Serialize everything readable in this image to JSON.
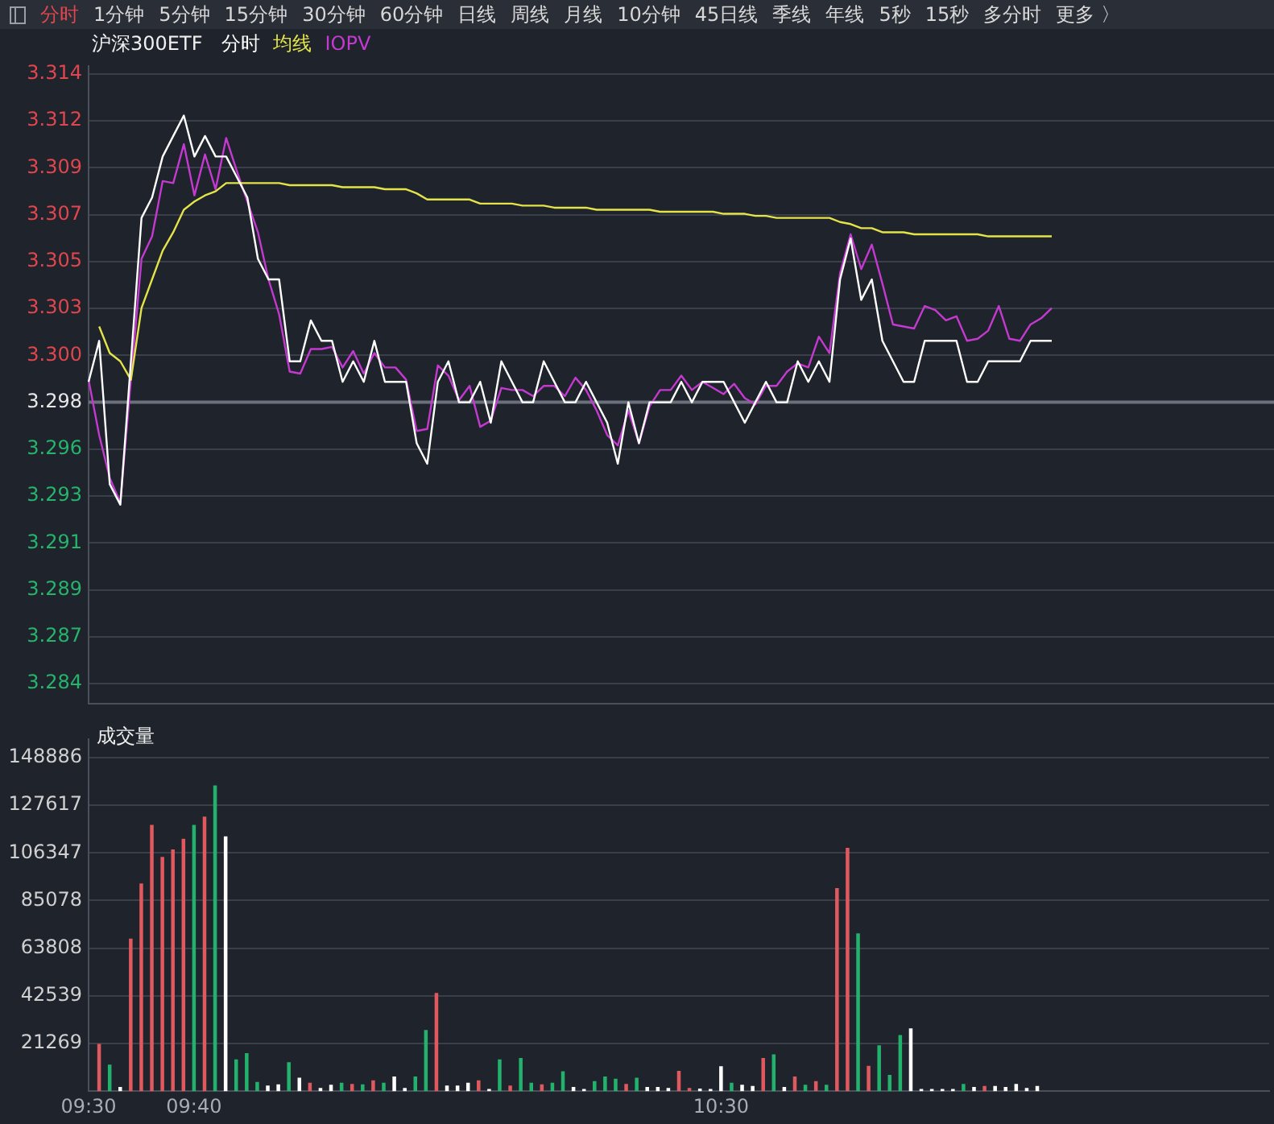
{
  "chart_data": [
    {
      "type": "line",
      "title": "沪深300ETF",
      "legend": "top left",
      "grid": "y",
      "tick_labels": "y",
      "annotations": [
        "分时",
        "1分钟",
        "5分钟",
        "15分钟",
        "30分钟",
        "60分钟",
        "日线",
        "周线",
        "月线",
        "10分钟",
        "45日线",
        "季线",
        "年线",
        "5秒",
        "15秒",
        "多分时",
        "更多 〉"
      ],
      "categories": [
        null,
        null,
        null,
        null,
        null,
        null,
        null,
        null,
        null,
        null,
        null,
        null,
        null,
        null,
        null,
        null,
        null,
        null,
        null,
        null,
        null,
        null,
        null,
        null,
        null,
        null,
        null,
        null,
        null,
        null,
        null,
        null,
        null,
        null,
        null,
        null,
        null,
        null,
        null,
        null,
        null,
        null,
        null,
        null,
        null,
        null,
        null,
        null,
        null,
        null,
        null,
        null,
        null,
        null,
        null,
        null,
        null,
        null,
        null,
        null,
        null,
        null,
        null,
        null,
        null,
        null,
        null,
        null,
        null,
        null,
        null,
        null,
        null,
        null,
        null,
        null,
        null,
        null,
        null,
        null,
        null,
        null,
        null,
        null,
        null,
        null,
        null,
        null,
        null,
        null,
        null,
        null,
        null,
        null,
        null,
        null,
        null,
        null,
        null,
        null,
        null,
        null,
        null,
        null,
        null,
        null,
        null,
        null,
        null,
        null,
        null,
        null,
        null
      ],
      "ylim": [
        3.2833,
        3.3144
      ],
      "yticks": [
        {
          "value": 3.28426,
          "label": "3.284"
        },
        {
          "value": 3.28655,
          "label": "3.287"
        },
        {
          "value": 3.28884,
          "label": "3.289"
        },
        {
          "value": 3.29113,
          "label": "3.291"
        },
        {
          "value": 3.29342,
          "label": "3.293"
        },
        {
          "value": 3.29571,
          "label": "3.296"
        },
        {
          "value": 3.298,
          "label": "3.298"
        },
        {
          "value": 3.30029,
          "label": "3.300"
        },
        {
          "value": 3.30258,
          "label": "3.303"
        },
        {
          "value": 3.30487,
          "label": "3.305"
        },
        {
          "value": 3.30716,
          "label": "3.307"
        },
        {
          "value": 3.30945,
          "label": "3.309"
        },
        {
          "value": 3.31174,
          "label": "3.312"
        },
        {
          "value": 3.31403,
          "label": "3.314"
        }
      ],
      "ref_lines": [
        {
          "axis": "y",
          "value": 3.298,
          "label": null,
          "color": "#6b717c"
        }
      ],
      "series": [
        {
          "name": "分时",
          "color": "#ffffff",
          "values": [
            3.299,
            3.301,
            3.294,
            3.293,
            3.3,
            3.307,
            3.308,
            3.31,
            3.311,
            3.312,
            3.31,
            3.311,
            3.31,
            3.31,
            3.309,
            3.308,
            3.305,
            3.304,
            3.304,
            3.3,
            3.3,
            3.302,
            3.301,
            3.301,
            3.299,
            3.3,
            3.299,
            3.301,
            3.299,
            3.299,
            3.299,
            3.296,
            3.295,
            3.299,
            3.3,
            3.298,
            3.298,
            3.299,
            3.297,
            3.3,
            3.299,
            3.298,
            3.298,
            3.3,
            3.299,
            3.298,
            3.298,
            3.299,
            3.298,
            3.297,
            3.295,
            3.298,
            3.296,
            3.298,
            3.298,
            3.298,
            3.299,
            3.298,
            3.299,
            3.299,
            3.299,
            3.298,
            3.297,
            3.298,
            3.299,
            3.298,
            3.298,
            3.3,
            3.299,
            3.3,
            3.299,
            3.304,
            3.306,
            3.303,
            3.304,
            3.301,
            3.3,
            3.299,
            3.299,
            3.301,
            3.301,
            3.301,
            3.301,
            3.299,
            3.299,
            3.3,
            3.3,
            3.3,
            3.3,
            3.301,
            3.301,
            3.301,
            null,
            null,
            null,
            null,
            null,
            null,
            null,
            null,
            null,
            null,
            null,
            null,
            null,
            null,
            null,
            null,
            null,
            null,
            null,
            null,
            null
          ]
        },
        {
          "name": "均线",
          "color": "#e4e44a",
          "values": [
            null,
            3.3017,
            3.3004,
            3.3,
            3.2991,
            3.3026,
            3.304,
            3.3054,
            3.3063,
            3.3074,
            3.3078,
            3.3081,
            3.3083,
            3.3087,
            3.3087,
            3.3087,
            3.3087,
            3.3087,
            3.3087,
            3.3086,
            3.3086,
            3.3086,
            3.3086,
            3.3086,
            3.3085,
            3.3085,
            3.3085,
            3.3085,
            3.3084,
            3.3084,
            3.3084,
            3.3082,
            3.3079,
            3.3079,
            3.3079,
            3.3079,
            3.3079,
            3.3077,
            3.3077,
            3.3077,
            3.3077,
            3.3076,
            3.3076,
            3.3076,
            3.3075,
            3.3075,
            3.3075,
            3.3075,
            3.3074,
            3.3074,
            3.3074,
            3.3074,
            3.3074,
            3.3074,
            3.3073,
            3.3073,
            3.3073,
            3.3073,
            3.3073,
            3.3073,
            3.3072,
            3.3072,
            3.3072,
            3.3071,
            3.3071,
            3.307,
            3.307,
            3.307,
            3.307,
            3.307,
            3.307,
            3.3068,
            3.3067,
            3.3065,
            3.3065,
            3.3063,
            3.3063,
            3.3063,
            3.3062,
            3.3062,
            3.3062,
            3.3062,
            3.3062,
            3.3062,
            3.3062,
            3.3061,
            3.3061,
            3.3061,
            3.3061,
            3.3061,
            3.3061,
            3.3061,
            null,
            null,
            null,
            null,
            null,
            null,
            null,
            null,
            null,
            null,
            null,
            null,
            null,
            null,
            null,
            null,
            null,
            null,
            null,
            null,
            null
          ]
        },
        {
          "name": "IOPV",
          "color": "#c43ad0",
          "values": [
            3.2991,
            3.2964,
            3.2943,
            3.2931,
            3.2991,
            3.305,
            3.3061,
            3.3088,
            3.3087,
            3.3106,
            3.3081,
            3.3101,
            3.3084,
            3.3109,
            3.3093,
            3.3078,
            3.3063,
            3.304,
            3.3023,
            3.2995,
            3.2994,
            3.3006,
            3.3006,
            3.3007,
            3.2997,
            3.3005,
            3.2994,
            3.3004,
            3.2997,
            3.2997,
            3.2991,
            3.2966,
            3.2967,
            3.2998,
            3.2993,
            3.2981,
            3.2988,
            3.2968,
            3.2971,
            3.2987,
            3.2986,
            3.2986,
            3.2983,
            3.2988,
            3.2988,
            3.2983,
            3.2992,
            3.2986,
            3.2976,
            3.2964,
            3.2959,
            3.2976,
            3.296,
            3.2978,
            3.2986,
            3.2986,
            3.2993,
            3.2986,
            3.299,
            3.2987,
            3.2984,
            3.2989,
            3.2982,
            3.2979,
            3.2988,
            3.2988,
            3.2995,
            3.2999,
            3.2997,
            3.3012,
            3.3004,
            3.3043,
            3.3062,
            3.3045,
            3.3057,
            3.3038,
            3.3018,
            3.3017,
            3.3016,
            3.3027,
            3.3025,
            3.302,
            3.3022,
            3.301,
            3.3011,
            3.3015,
            3.3027,
            3.3011,
            3.301,
            3.3018,
            3.3021,
            3.3026,
            null,
            null,
            null,
            null,
            null,
            null,
            null,
            null,
            null,
            null,
            null,
            null,
            null,
            null,
            null,
            null,
            null,
            null,
            null,
            null,
            null
          ]
        }
      ]
    },
    {
      "type": "bar",
      "title": "成交量",
      "grid": "y",
      "categories": [
        "09:30",
        null,
        null,
        null,
        null,
        null,
        null,
        null,
        null,
        null,
        "09:40",
        null,
        null,
        null,
        null,
        null,
        null,
        null,
        null,
        null,
        null,
        null,
        null,
        null,
        null,
        null,
        null,
        null,
        null,
        null,
        null,
        null,
        null,
        null,
        null,
        null,
        null,
        null,
        null,
        null,
        null,
        null,
        null,
        null,
        null,
        null,
        null,
        null,
        null,
        null,
        null,
        null,
        null,
        null,
        null,
        null,
        null,
        null,
        null,
        null,
        "10:30",
        null,
        null,
        null,
        null,
        null,
        null,
        null,
        null,
        null,
        null,
        null,
        null,
        null,
        null,
        null,
        null,
        null,
        null,
        null,
        null,
        null,
        null,
        null,
        null,
        null,
        null,
        null,
        null,
        null,
        null,
        null,
        null,
        null,
        null,
        null,
        null,
        null,
        null,
        null,
        null,
        null,
        null,
        null,
        null,
        null,
        null,
        null,
        null,
        null,
        null,
        null,
        null
      ],
      "ylim": [
        0,
        157000
      ],
      "yticks": [
        21269,
        42539,
        63808,
        85078,
        106347,
        127617,
        148886
      ],
      "values": [
        null,
        20900,
        11600,
        1600,
        67900,
        92500,
        118600,
        104300,
        107700,
        112400,
        118600,
        122300,
        136200,
        113500,
        13900,
        16700,
        3900,
        2300,
        2800,
        12700,
        5800,
        3500,
        1200,
        2600,
        3500,
        3000,
        2800,
        4600,
        3500,
        6300,
        1200,
        6300,
        27100,
        43600,
        2300,
        2300,
        3500,
        4600,
        700,
        13900,
        2300,
        14600,
        3500,
        2800,
        3500,
        8600,
        1600,
        700,
        4200,
        6300,
        5300,
        3000,
        5800,
        1600,
        1600,
        1200,
        8800,
        1200,
        900,
        700,
        10900,
        3500,
        2600,
        2100,
        14600,
        16200,
        1600,
        6300,
        2600,
        4200,
        2600,
        90400,
        108400,
        70200,
        11100,
        20200,
        7000,
        24800,
        27800,
        700,
        700,
        700,
        700,
        3000,
        1600,
        2100,
        2100,
        1600,
        3000,
        1200,
        2100,
        null,
        null,
        null,
        null,
        null,
        null,
        null,
        null,
        null,
        null,
        null,
        null,
        null,
        null,
        null,
        null,
        null,
        null,
        null,
        null,
        null,
        null
      ],
      "colors": [
        "#ffffff",
        "#e0595e",
        "#23b26d",
        "#ffffff",
        "#e0595e",
        "#e0595e",
        "#e0595e",
        "#e0595e",
        "#e0595e",
        "#e0595e",
        "#23b26d",
        "#e0595e",
        "#23b26d",
        "#ffffff",
        "#23b26d",
        "#23b26d",
        "#23b26d",
        "#ffffff",
        "#ffffff",
        "#23b26d",
        "#ffffff",
        "#e0595e",
        "#ffffff",
        "#ffffff",
        "#23b26d",
        "#e0595e",
        "#23b26d",
        "#e0595e",
        "#23b26d",
        "#ffffff",
        "#ffffff",
        "#23b26d",
        "#23b26d",
        "#e0595e",
        "#ffffff",
        "#ffffff",
        "#ffffff",
        "#e0595e",
        "#ffffff",
        "#23b26d",
        "#e0595e",
        "#23b26d",
        "#23b26d",
        "#e0595e",
        "#23b26d",
        "#23b26d",
        "#ffffff",
        "#ffffff",
        "#23b26d",
        "#23b26d",
        "#23b26d",
        "#e0595e",
        "#23b26d",
        "#ffffff",
        "#ffffff",
        "#ffffff",
        "#e0595e",
        "#e0595e",
        "#ffffff",
        "#ffffff",
        "#ffffff",
        "#23b26d",
        "#ffffff",
        "#ffffff",
        "#e0595e",
        "#23b26d",
        "#ffffff",
        "#e0595e",
        "#23b26d",
        "#e0595e",
        "#23b26d",
        "#e0595e",
        "#e0595e",
        "#23b26d",
        "#e0595e",
        "#23b26d",
        "#23b26d",
        "#23b26d",
        "#ffffff",
        "#ffffff",
        "#ffffff",
        "#ffffff",
        "#ffffff",
        "#23b26d",
        "#ffffff",
        "#e0595e",
        "#ffffff",
        "#ffffff",
        "#ffffff",
        "#ffffff",
        "#ffffff",
        "#ffffff",
        "#ffffff",
        "#ffffff",
        "#ffffff",
        "#ffffff",
        "#ffffff",
        "#ffffff",
        "#ffffff",
        "#ffffff",
        "#ffffff",
        "#ffffff",
        "#ffffff",
        "#ffffff",
        "#ffffff",
        "#ffffff",
        "#ffffff",
        "#ffffff",
        "#ffffff",
        "#ffffff",
        "#ffffff",
        "#ffffff",
        "#ffffff"
      ]
    }
  ]
}
